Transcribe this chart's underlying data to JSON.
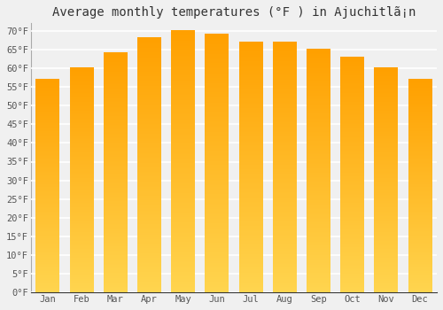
{
  "title": "Average monthly temperatures (°F ) in Ajuchitlã¡n",
  "months": [
    "Jan",
    "Feb",
    "Mar",
    "Apr",
    "May",
    "Jun",
    "Jul",
    "Aug",
    "Sep",
    "Oct",
    "Nov",
    "Dec"
  ],
  "values": [
    57,
    60,
    64,
    68,
    70,
    69,
    67,
    67,
    65,
    63,
    60,
    57
  ],
  "bar_color_light": "#FFD54F",
  "bar_color_dark": "#FFA000",
  "background_color": "#f0f0f0",
  "grid_color": "#ffffff",
  "ylim": [
    0,
    72
  ],
  "yticks": [
    0,
    5,
    10,
    15,
    20,
    25,
    30,
    35,
    40,
    45,
    50,
    55,
    60,
    65,
    70
  ],
  "ytick_labels": [
    "0°F",
    "5°F",
    "10°F",
    "15°F",
    "20°F",
    "25°F",
    "30°F",
    "35°F",
    "40°F",
    "45°F",
    "50°F",
    "55°F",
    "60°F",
    "65°F",
    "70°F"
  ],
  "title_fontsize": 10,
  "tick_fontsize": 7.5,
  "bar_width": 0.7
}
